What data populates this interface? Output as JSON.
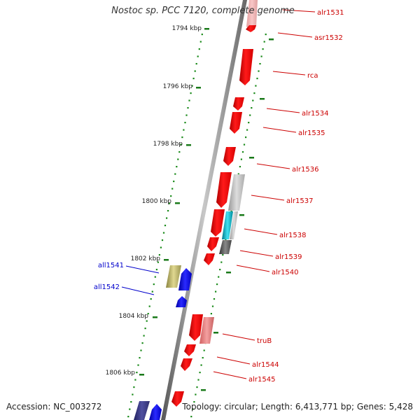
{
  "title": "Nostoc sp. PCC 7120, complete genome",
  "accession": "Accession: NC_003272",
  "topology": "Topology: circular; Length: 6,413,771 bp; Genes: 5,428",
  "colors": {
    "forward_gene": "#ff0000",
    "reverse_gene": "#0000ff",
    "forward_label": "#cc0000",
    "reverse_label": "#0000cc",
    "tick": "#1a7a1a",
    "backbone": "#888888"
  },
  "kbp_ticks": [
    "1794 kbp",
    "1796 kbp",
    "1798 kbp",
    "1800 kbp",
    "1802 kbp",
    "1804 kbp",
    "1806 kbp"
  ],
  "forward_labels": [
    "alr1531",
    "asr1532",
    "rca",
    "alr1534",
    "alr1535",
    "alr1536",
    "alr1537",
    "alr1538",
    "alr1539",
    "alr1540",
    "truB",
    "alr1544",
    "alr1545"
  ],
  "reverse_labels": [
    "all1541",
    "all1542"
  ]
}
